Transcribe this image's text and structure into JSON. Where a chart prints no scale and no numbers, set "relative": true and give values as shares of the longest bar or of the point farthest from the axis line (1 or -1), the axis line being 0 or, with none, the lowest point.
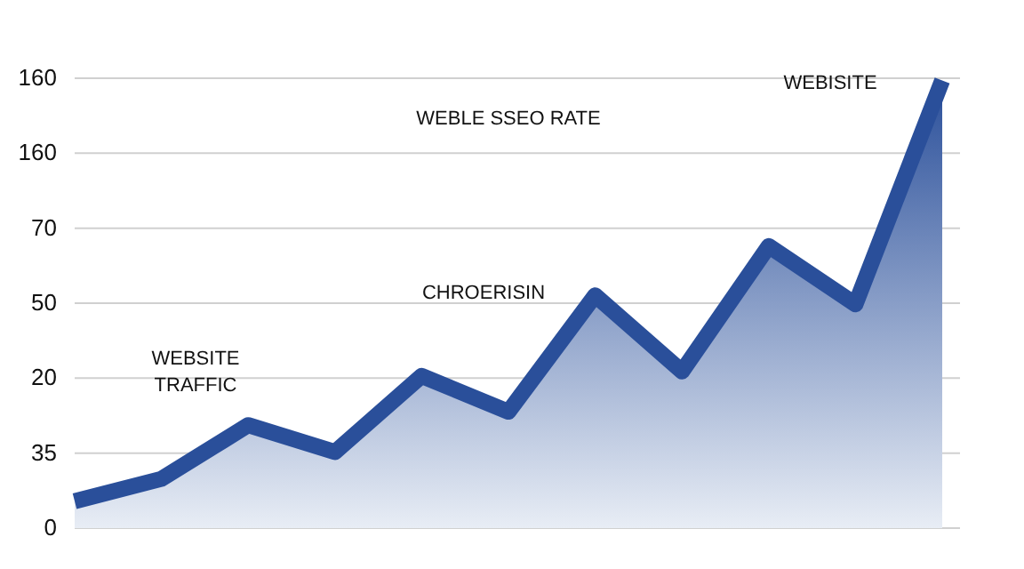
{
  "chart_data": {
    "type": "area",
    "categories": [
      null,
      null,
      null,
      null,
      null,
      null,
      null,
      null,
      null,
      null,
      null
    ],
    "series": [
      {
        "color": "#2a4f9a",
        "values": [
          0.06,
          0.11,
          0.23,
          0.17,
          0.34,
          0.26,
          0.52,
          0.35,
          0.63,
          0.5,
          1.0
        ]
      }
    ],
    "relative": true,
    "grid": "y",
    "annotations": [
      "WEBSITE\nTRAFFIC",
      "WEBLE SSEO RATE",
      "CHROERISIN",
      "WEBISITE",
      "160",
      "160",
      "70",
      "50",
      "20",
      "35",
      "0"
    ]
  }
}
